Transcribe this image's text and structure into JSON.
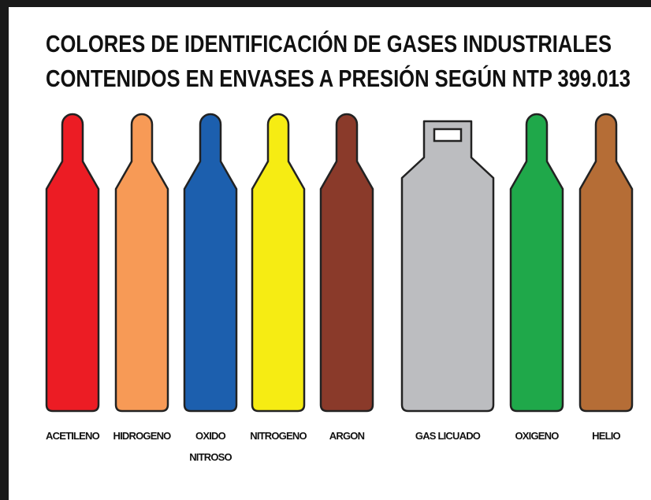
{
  "header": {
    "title_lines": [
      "COLORES DE IDENTIFICACIÓN DE GASES INDUSTRIALES",
      "CONTENIDOS EN ENVASES A PRESIÓN SEGÚN NTP 399.013"
    ]
  },
  "cylinders": [
    {
      "label_lines": [
        "ACETILENO"
      ],
      "color": "#ec1c24"
    },
    {
      "label_lines": [
        "HIDROGENO"
      ],
      "color": "#f79a56"
    },
    {
      "label_lines": [
        "OXIDO",
        "NITROSO"
      ],
      "color": "#1c5fae"
    },
    {
      "label_lines": [
        "NITROGENO"
      ],
      "color": "#f6ec13"
    },
    {
      "label_lines": [
        "ARGON"
      ],
      "color": "#8a3a2a"
    },
    {
      "label_lines": [
        "GAS LICUADO"
      ],
      "color": "#bcbdc0"
    },
    {
      "label_lines": [
        "OXIGENO"
      ],
      "color": "#1fa84a"
    },
    {
      "label_lines": [
        "HELIO"
      ],
      "color": "#b56d36"
    }
  ]
}
